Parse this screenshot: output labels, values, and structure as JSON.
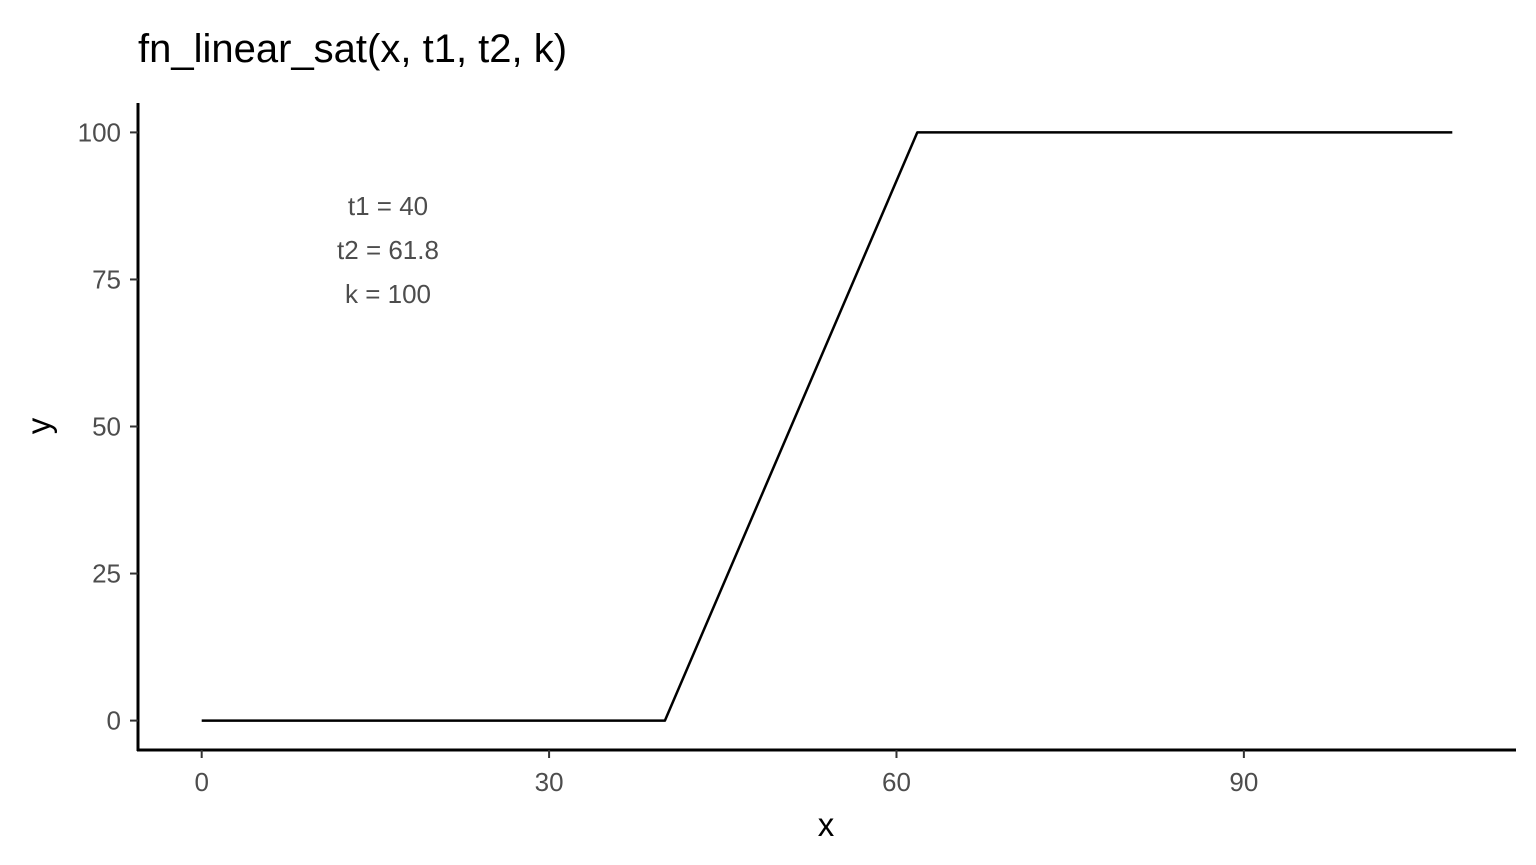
{
  "chart_data": {
    "type": "line",
    "title": "fn_linear_sat(x, t1, t2, k)",
    "xlabel": "x",
    "ylabel": "y",
    "xlim": [
      -5.5,
      113.5
    ],
    "ylim": [
      -5,
      105
    ],
    "x_ticks": [
      0,
      30,
      60,
      90
    ],
    "y_ticks": [
      0,
      25,
      50,
      75,
      100
    ],
    "grid": false,
    "series": [
      {
        "color": "#000000",
        "x": [
          0,
          40,
          61.8,
          108
        ],
        "y": [
          0,
          0,
          100,
          100
        ]
      }
    ],
    "annotations": [
      {
        "text": "t1 = 40"
      },
      {
        "text": "t2 = 61.8"
      },
      {
        "text": "k = 100"
      }
    ]
  }
}
